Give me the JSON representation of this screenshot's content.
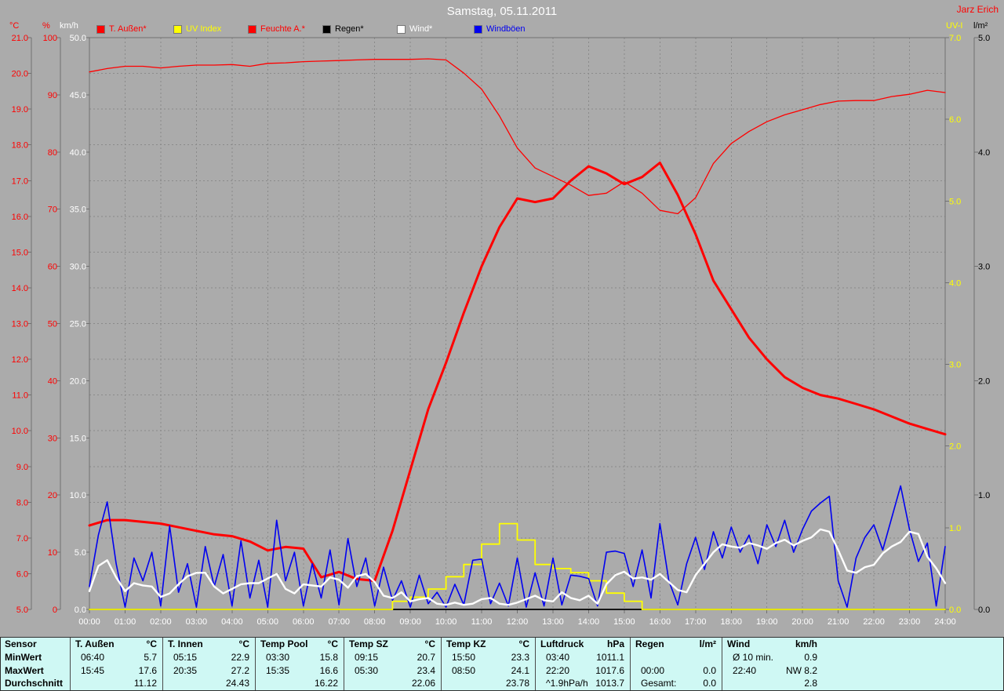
{
  "header": {
    "title": "Samstag, 05.11.2011",
    "author": "Jarz Erich"
  },
  "units": {
    "temp": "°C",
    "percent": "%",
    "kmh": "km/h",
    "uv": "UV-I",
    "lm2": "l/m²"
  },
  "colors": {
    "background": "#ababab",
    "grid": "#8a8a8a",
    "axis_line": "#707070",
    "red": "#ff0000",
    "yellow": "#ffff00",
    "white": "#ffffff",
    "black": "#000000",
    "blue": "#0000f0",
    "table_bg": "#cff8f4",
    "table_border": "#303030",
    "title_text": "#ffffff"
  },
  "legend": {
    "items": [
      {
        "label": "T. Außen*",
        "color": "#ff0000"
      },
      {
        "label": "UV Index",
        "color": "#ffff00"
      },
      {
        "label": "Feuchte A.*",
        "color": "#ff0000"
      },
      {
        "label": "Regen*",
        "color": "#000000"
      },
      {
        "label": "Wind*",
        "color": "#ffffff"
      },
      {
        "label": "Windböen",
        "color": "#0000f0"
      }
    ]
  },
  "chart_data": {
    "type": "line",
    "title": "Samstag, 05.11.2011",
    "x_axis": {
      "start_hour": 0,
      "end_hour": 24,
      "tick_labels": [
        "00:00",
        "01:00",
        "02:00",
        "03:00",
        "04:00",
        "05:00",
        "06:00",
        "07:00",
        "08:00",
        "09:00",
        "10:00",
        "11:00",
        "12:00",
        "13:00",
        "14:00",
        "15:00",
        "16:00",
        "17:00",
        "18:00",
        "19:00",
        "20:00",
        "21:00",
        "22:00",
        "23:00",
        "24:00"
      ]
    },
    "axes": {
      "temp": {
        "label": "°C",
        "min": 5,
        "max": 21,
        "color": "#ff0000",
        "side": "left",
        "ticks": [
          "21.0",
          "20.0",
          "19.0",
          "18.0",
          "17.0",
          "16.0",
          "15.0",
          "14.0",
          "13.0",
          "12.0",
          "11.0",
          "10.0",
          "9.0",
          "8.0",
          "7.0",
          "6.0",
          "5.0"
        ]
      },
      "percent": {
        "label": "%",
        "min": 0,
        "max": 100,
        "color": "#ff0000",
        "side": "left",
        "ticks": [
          "100",
          "90",
          "80",
          "70",
          "60",
          "50",
          "40",
          "30",
          "20",
          "10",
          "0"
        ]
      },
      "kmh": {
        "label": "km/h",
        "min": 0,
        "max": 50,
        "color": "#ffffff",
        "side": "left",
        "ticks": [
          "50.0",
          "45.0",
          "40.0",
          "35.0",
          "30.0",
          "25.0",
          "20.0",
          "15.0",
          "10.0",
          "5.0",
          "0.0"
        ]
      },
      "uv": {
        "label": "UV-I",
        "min": 0,
        "max": 7,
        "color": "#ffff00",
        "side": "right",
        "ticks": [
          "7.0",
          "6.0",
          "5.0",
          "4.0",
          "3.0",
          "2.0",
          "1.0",
          "0.0"
        ]
      },
      "lm2": {
        "label": "l/m²",
        "min": 0,
        "max": 5,
        "color": "#000000",
        "side": "right",
        "ticks": [
          "5.0",
          "4.0",
          "3.0",
          "2.0",
          "1.0",
          "0.0"
        ]
      }
    },
    "grid": {
      "vertical_every_hours": 1,
      "horizontal_divisions": 16,
      "style": "dashed"
    },
    "series": [
      {
        "name": "Regen*",
        "axis": "lm2",
        "color": "#000000",
        "width": 1.8,
        "step_min": 720,
        "values": [
          0,
          0,
          0
        ]
      },
      {
        "name": "Feuchte A.*",
        "axis": "percent",
        "color": "#ff0000",
        "width": 1.3,
        "step_min": 30,
        "values": [
          94.0,
          94.6,
          95.0,
          95.0,
          94.7,
          95.0,
          95.2,
          95.2,
          95.3,
          95.0,
          95.5,
          95.6,
          95.8,
          95.9,
          96.0,
          96.1,
          96.2,
          96.2,
          96.2,
          96.3,
          96.1,
          93.8,
          91.0,
          86.3,
          80.7,
          77.2,
          75.7,
          74.2,
          72.4,
          72.8,
          74.8,
          72.8,
          69.8,
          69.2,
          72.0,
          78.0,
          81.5,
          83.6,
          85.3,
          86.5,
          87.4,
          88.3,
          88.9,
          89.0,
          89.0,
          89.7,
          90.1,
          90.8,
          90.4
        ]
      },
      {
        "name": "UV Index",
        "axis": "uv",
        "color": "#ffff00",
        "width": 1.8,
        "step_min": 30,
        "step_line": true,
        "values": [
          0,
          0,
          0,
          0,
          0,
          0,
          0,
          0,
          0,
          0,
          0,
          0,
          0,
          0,
          0,
          0,
          0,
          0.1,
          0.15,
          0.25,
          0.4,
          0.55,
          0.8,
          1.05,
          0.85,
          0.55,
          0.5,
          0.45,
          0.35,
          0.2,
          0.1,
          0,
          0,
          0,
          0,
          0,
          0,
          0,
          0,
          0,
          0,
          0,
          0,
          0,
          0,
          0,
          0,
          0,
          0
        ]
      },
      {
        "name": "T. Außen*",
        "axis": "temp",
        "color": "#ff0000",
        "width": 3,
        "step_min": 30,
        "values": [
          7.35,
          7.5,
          7.5,
          7.45,
          7.4,
          7.3,
          7.2,
          7.1,
          7.05,
          6.9,
          6.65,
          6.75,
          6.7,
          5.9,
          6.05,
          5.85,
          5.8,
          7.2,
          8.9,
          10.6,
          11.9,
          13.3,
          14.6,
          15.7,
          16.5,
          16.4,
          16.5,
          17.0,
          17.4,
          17.2,
          16.9,
          17.1,
          17.5,
          16.6,
          15.5,
          14.2,
          13.4,
          12.6,
          12.0,
          11.5,
          11.2,
          11.0,
          10.9,
          10.75,
          10.6,
          10.4,
          10.2,
          10.05,
          9.9
        ]
      },
      {
        "name": "Windböen",
        "axis": "kmh",
        "color": "#0000f0",
        "width": 1.6,
        "step_min": 15,
        "values": [
          2.0,
          6.5,
          9.4,
          4.0,
          0.2,
          4.5,
          2.5,
          5.0,
          0.3,
          7.3,
          1.5,
          4.0,
          0.2,
          5.5,
          2.0,
          4.8,
          0.3,
          6.0,
          1.0,
          4.3,
          0.2,
          7.8,
          2.5,
          5.0,
          0.3,
          4.0,
          1.0,
          5.2,
          0.4,
          6.2,
          2.0,
          4.5,
          0.3,
          3.7,
          0.8,
          2.5,
          0.2,
          3.0,
          0.5,
          1.5,
          0.2,
          2.2,
          0.4,
          4.3,
          4.4,
          0.5,
          2.3,
          0.3,
          4.5,
          0.2,
          3.2,
          0.3,
          4.5,
          0.4,
          3.0,
          2.9,
          2.7,
          0.3,
          5.0,
          5.1,
          4.9,
          2.0,
          5.2,
          1.0,
          7.5,
          2.5,
          0.4,
          4.0,
          6.3,
          3.5,
          6.8,
          4.5,
          7.2,
          5.0,
          6.5,
          4.0,
          7.4,
          5.5,
          7.8,
          5.0,
          7.0,
          8.6,
          9.3,
          9.9,
          2.5,
          0.2,
          4.5,
          6.3,
          7.4,
          5.2,
          8.0,
          10.8,
          7.0,
          4.2,
          5.8,
          0.3,
          5.5
        ]
      },
      {
        "name": "Wind*",
        "axis": "kmh",
        "color": "#ffffff",
        "width": 2.4,
        "step_min": 15,
        "values": [
          1.6,
          3.8,
          4.3,
          2.8,
          1.6,
          2.3,
          2.1,
          2.0,
          1.1,
          1.4,
          2.2,
          2.9,
          3.2,
          3.2,
          2.0,
          1.4,
          1.8,
          2.2,
          2.3,
          2.3,
          2.7,
          3.1,
          1.8,
          1.4,
          2.2,
          2.1,
          2.0,
          2.8,
          2.6,
          1.9,
          2.9,
          3.1,
          2.4,
          1.2,
          1.0,
          1.5,
          0.7,
          0.9,
          1.0,
          0.5,
          0.4,
          0.6,
          0.4,
          0.5,
          0.9,
          1.0,
          0.5,
          0.4,
          0.6,
          0.9,
          1.2,
          0.8,
          0.7,
          1.5,
          1.0,
          0.8,
          1.2,
          0.5,
          2.2,
          3.0,
          3.3,
          2.7,
          2.8,
          2.6,
          3.1,
          2.4,
          1.7,
          1.5,
          3.0,
          4.0,
          5.0,
          5.7,
          5.5,
          5.4,
          5.8,
          5.6,
          5.3,
          5.8,
          6.1,
          5.6,
          6.0,
          6.3,
          7.0,
          6.8,
          5.2,
          3.4,
          3.2,
          3.7,
          3.9,
          4.9,
          5.5,
          5.9,
          6.8,
          6.6,
          4.6,
          3.6,
          2.3
        ]
      }
    ]
  },
  "table": {
    "row_labels": [
      "Sensor",
      "MinWert",
      "MaxWert",
      "Durchschnitt"
    ],
    "columns": [
      {
        "name": "T. Außen",
        "unit": "°C",
        "min": [
          "06:40",
          "5.7"
        ],
        "max": [
          "15:45",
          "17.6"
        ],
        "avg": [
          "",
          "11.12"
        ]
      },
      {
        "name": "T. Innen",
        "unit": "°C",
        "min": [
          "05:15",
          "22.9"
        ],
        "max": [
          "20:35",
          "27.2"
        ],
        "avg": [
          "",
          "24.43"
        ]
      },
      {
        "name": "Temp Pool",
        "unit": "°C",
        "min": [
          "03:30",
          "15.8"
        ],
        "max": [
          "15:35",
          "16.6"
        ],
        "avg": [
          "",
          "16.22"
        ]
      },
      {
        "name": "Temp SZ",
        "unit": "°C",
        "min": [
          "09:15",
          "20.7"
        ],
        "max": [
          "05:30",
          "23.4"
        ],
        "avg": [
          "",
          "22.06"
        ]
      },
      {
        "name": "Temp KZ",
        "unit": "°C",
        "min": [
          "15:50",
          "23.3"
        ],
        "max": [
          "08:50",
          "24.1"
        ],
        "avg": [
          "",
          "23.78"
        ]
      },
      {
        "name": "Luftdruck",
        "unit": "hPa",
        "min": [
          "03:40",
          "1011.1"
        ],
        "max": [
          "22:20",
          "1017.6"
        ],
        "avg": [
          "^1.9hPa/h",
          "1013.7"
        ]
      },
      {
        "name": "Regen",
        "unit": "l/m²",
        "min": [
          "",
          ""
        ],
        "max": [
          "00:00",
          "0.0"
        ],
        "avg": [
          "Gesamt:",
          "0.0"
        ]
      },
      {
        "name": "Wind",
        "unit": "km/h",
        "min": [
          "Ø 10 min.",
          "0.9"
        ],
        "max": [
          "22:40",
          "NW 8.2"
        ],
        "avg": [
          "",
          "2.8"
        ]
      }
    ]
  }
}
